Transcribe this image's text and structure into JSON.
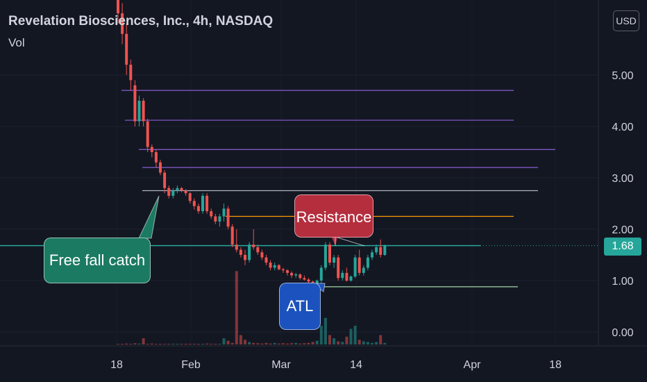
{
  "header": {
    "title": "Revelation Biosciences, Inc., 4h, NASDAQ",
    "indicator": "Vol",
    "currency": "USD"
  },
  "last_price_label": "1.68",
  "annotations": {
    "free_fall": "Free fall catch",
    "resistance": "Resistance",
    "atl": "ATL"
  },
  "colors": {
    "background": "#131722",
    "up": "#26a69a",
    "down": "#ef5350",
    "level_purple": "#7e57c2",
    "level_gray": "#b2b5be",
    "level_orange": "#ff9800",
    "level_green": "#a5d6a7",
    "current_price": "#26a69a"
  },
  "chart_data": {
    "type": "candlestick",
    "symbol": "Revelation Biosciences, Inc.",
    "interval": "4h",
    "exchange": "NASDAQ",
    "y_axis_ticks": [
      "5.00",
      "4.00",
      "3.00",
      "2.00",
      "1.00",
      "0.00"
    ],
    "ylim": [
      0,
      6.3
    ],
    "x_axis_ticks": [
      "18",
      "Feb",
      "Mar",
      "14",
      "Apr",
      "18"
    ],
    "last_price": 1.68,
    "price_levels": [
      {
        "price": 4.7,
        "color": "purple"
      },
      {
        "price": 4.12,
        "color": "purple"
      },
      {
        "price": 3.55,
        "color": "purple"
      },
      {
        "price": 3.2,
        "color": "purple"
      },
      {
        "price": 2.75,
        "color": "gray"
      },
      {
        "price": 2.25,
        "color": "orange"
      },
      {
        "price": 1.68,
        "color": "teal"
      },
      {
        "price": 0.88,
        "color": "green"
      }
    ],
    "candles": [
      [
        6.6,
        6.9,
        6.0,
        6.2
      ],
      [
        6.2,
        6.4,
        5.6,
        5.8
      ],
      [
        5.8,
        6.0,
        5.0,
        5.2
      ],
      [
        5.2,
        5.3,
        4.7,
        4.9
      ],
      [
        4.8,
        4.9,
        4.0,
        4.1
      ],
      [
        4.1,
        4.6,
        4.0,
        4.5
      ],
      [
        4.5,
        4.55,
        4.0,
        4.1
      ],
      [
        4.1,
        4.15,
        3.5,
        3.6
      ],
      [
        3.6,
        3.65,
        3.4,
        3.5
      ],
      [
        3.5,
        3.55,
        3.2,
        3.3
      ],
      [
        3.3,
        3.35,
        3.05,
        3.1
      ],
      [
        3.1,
        3.15,
        2.7,
        2.8
      ],
      [
        2.8,
        2.85,
        2.6,
        2.65
      ],
      [
        2.65,
        2.8,
        2.6,
        2.75
      ],
      [
        2.75,
        2.85,
        2.7,
        2.8
      ],
      [
        2.8,
        2.82,
        2.72,
        2.75
      ],
      [
        2.75,
        2.78,
        2.65,
        2.7
      ],
      [
        2.7,
        2.72,
        2.5,
        2.55
      ],
      [
        2.55,
        2.6,
        2.38,
        2.45
      ],
      [
        2.45,
        2.5,
        2.3,
        2.35
      ],
      [
        2.35,
        2.7,
        2.3,
        2.65
      ],
      [
        2.65,
        2.7,
        2.3,
        2.35
      ],
      [
        2.35,
        2.4,
        2.2,
        2.25
      ],
      [
        2.25,
        2.3,
        2.1,
        2.15
      ],
      [
        2.15,
        2.3,
        2.05,
        2.25
      ],
      [
        2.25,
        2.5,
        2.15,
        2.4
      ],
      [
        2.4,
        2.45,
        2.0,
        2.05
      ],
      [
        2.05,
        2.1,
        1.65,
        1.7
      ],
      [
        1.7,
        2.0,
        1.55,
        1.6
      ],
      [
        1.6,
        1.65,
        1.45,
        1.5
      ],
      [
        1.5,
        1.6,
        1.3,
        1.4
      ],
      [
        1.4,
        1.75,
        1.35,
        1.7
      ],
      [
        1.7,
        2.0,
        1.6,
        1.65
      ],
      [
        1.65,
        1.7,
        1.5,
        1.55
      ],
      [
        1.55,
        1.6,
        1.4,
        1.45
      ],
      [
        1.45,
        1.5,
        1.3,
        1.35
      ],
      [
        1.35,
        1.4,
        1.2,
        1.25
      ],
      [
        1.25,
        1.35,
        1.2,
        1.3
      ],
      [
        1.3,
        1.32,
        1.2,
        1.22
      ],
      [
        1.22,
        1.25,
        1.15,
        1.2
      ],
      [
        1.2,
        1.22,
        1.1,
        1.15
      ],
      [
        1.15,
        1.18,
        1.05,
        1.1
      ],
      [
        1.1,
        1.15,
        1.05,
        1.12
      ],
      [
        1.12,
        1.14,
        1.02,
        1.05
      ],
      [
        1.05,
        1.1,
        1.0,
        1.02
      ],
      [
        1.02,
        1.05,
        0.95,
        0.98
      ],
      [
        0.98,
        1.0,
        0.9,
        0.92
      ],
      [
        0.92,
        1.02,
        0.88,
        1.0
      ],
      [
        1.0,
        1.3,
        0.95,
        1.25
      ],
      [
        1.25,
        1.75,
        1.2,
        1.7
      ],
      [
        1.7,
        1.75,
        1.3,
        1.35
      ],
      [
        1.35,
        1.5,
        1.25,
        1.45
      ],
      [
        1.45,
        1.5,
        1.0,
        1.05
      ],
      [
        1.05,
        1.2,
        1.0,
        1.15
      ],
      [
        1.15,
        1.25,
        0.98,
        1.0
      ],
      [
        1.0,
        1.1,
        0.98,
        1.08
      ],
      [
        1.08,
        1.5,
        1.05,
        1.45
      ],
      [
        1.45,
        1.6,
        1.1,
        1.15
      ],
      [
        1.15,
        1.3,
        1.1,
        1.25
      ],
      [
        1.25,
        1.5,
        1.2,
        1.45
      ],
      [
        1.45,
        1.6,
        1.4,
        1.55
      ],
      [
        1.55,
        1.7,
        1.5,
        1.65
      ],
      [
        1.65,
        1.8,
        1.45,
        1.5
      ],
      [
        1.5,
        1.7,
        1.48,
        1.68
      ]
    ],
    "volumes": [
      0.02,
      0.02,
      0.03,
      0.02,
      0.04,
      0.03,
      0.2,
      0.02,
      0.03,
      0.02,
      0.02,
      0.02,
      0.02,
      0.02,
      0.02,
      0.02,
      0.02,
      0.02,
      0.02,
      0.02,
      0.02,
      0.03,
      0.02,
      0.02,
      0.02,
      0.2,
      0.12,
      0.05,
      2.35,
      0.3,
      0.15,
      0.08,
      0.05,
      0.04,
      0.03,
      0.05,
      0.03,
      0.05,
      0.03,
      0.04,
      0.03,
      0.04,
      0.05,
      0.03,
      0.04,
      0.05,
      0.08,
      0.12,
      0.6,
      0.85,
      0.3,
      0.2,
      0.1,
      0.08,
      0.25,
      0.5,
      0.6,
      0.15,
      0.1,
      0.08,
      0.05,
      0.08,
      0.3,
      0.05
    ]
  }
}
